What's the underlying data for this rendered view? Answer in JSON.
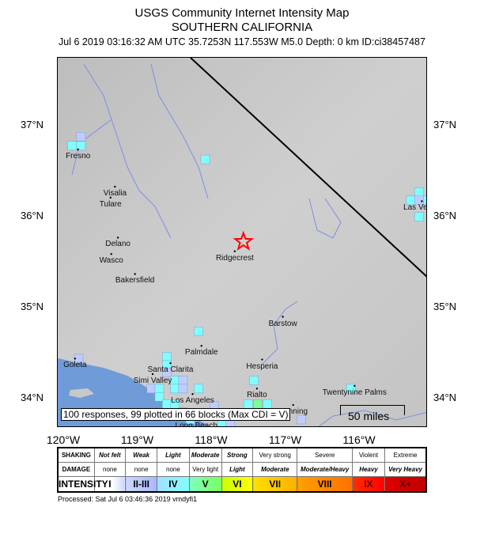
{
  "header": {
    "title": "USGS Community Internet Intensity Map",
    "subtitle": "SOUTHERN CALIFORNIA",
    "info": "Jul 6 2019 03:16:32 AM UTC 35.7253N 117.553W M5.0 Depth: 0 km ID:ci38457487"
  },
  "map": {
    "lon_range": [
      -120.07,
      -115.06
    ],
    "lat_range": [
      33.68,
      37.74
    ],
    "epicenter": {
      "lon": -117.553,
      "lat": 35.7253,
      "icon": "star-icon",
      "color": "#ff0000"
    },
    "lat_labels": [
      "37°N",
      "36°N",
      "35°N",
      "34°N"
    ],
    "lat_values": [
      37,
      36,
      35,
      34
    ],
    "lon_labels": [
      "120°W",
      "119°W",
      "118°W",
      "117°W",
      "116°W"
    ],
    "lon_values": [
      -120,
      -119,
      -118,
      -117,
      -116
    ],
    "cities": [
      {
        "name": "Fresno",
        "lon": -119.79,
        "lat": 36.74
      },
      {
        "name": "Visalia",
        "lon": -119.29,
        "lat": 36.33
      },
      {
        "name": "Tulare",
        "lon": -119.35,
        "lat": 36.21
      },
      {
        "name": "Delano",
        "lon": -119.25,
        "lat": 35.77
      },
      {
        "name": "Wasco",
        "lon": -119.34,
        "lat": 35.59
      },
      {
        "name": "Bakersfield",
        "lon": -119.02,
        "lat": 35.37
      },
      {
        "name": "Ridgecrest",
        "lon": -117.67,
        "lat": 35.62
      },
      {
        "name": "Barstow",
        "lon": -117.02,
        "lat": 34.9
      },
      {
        "name": "Palmdale",
        "lon": -118.12,
        "lat": 34.58
      },
      {
        "name": "Santa Clarita",
        "lon": -118.54,
        "lat": 34.39
      },
      {
        "name": "Simi Valley",
        "lon": -118.78,
        "lat": 34.27
      },
      {
        "name": "Los Angeles",
        "lon": -118.24,
        "lat": 34.05
      },
      {
        "name": "Hesperia",
        "lon": -117.3,
        "lat": 34.43
      },
      {
        "name": "Rialto",
        "lon": -117.37,
        "lat": 34.11
      },
      {
        "name": "Twentynine Palms",
        "lon": -116.05,
        "lat": 34.14
      },
      {
        "name": "Goleta",
        "lon": -119.83,
        "lat": 34.44
      },
      {
        "name": "Long Beach",
        "lon": -118.19,
        "lat": 33.77
      },
      {
        "name": "Banning",
        "lon": -116.88,
        "lat": 33.93
      },
      {
        "name": "Las Vegas",
        "lon": -115.14,
        "lat": 36.17
      }
    ],
    "cdi_blocks": [
      {
        "lon": -119.87,
        "lat": 36.78,
        "cdi": "IV"
      },
      {
        "lon": -119.75,
        "lat": 36.78,
        "cdi": "IV"
      },
      {
        "lon": -119.75,
        "lat": 36.88,
        "cdi": "II-III"
      },
      {
        "lon": -118.07,
        "lat": 36.63,
        "cdi": "IV"
      },
      {
        "lon": -115.29,
        "lat": 36.18,
        "cdi": "IV"
      },
      {
        "lon": -115.18,
        "lat": 36.27,
        "cdi": "IV"
      },
      {
        "lon": -115.18,
        "lat": 36.18,
        "cdi": "II-III"
      },
      {
        "lon": -115.06,
        "lat": 36.18,
        "cdi": "IV"
      },
      {
        "lon": -115.18,
        "lat": 36.0,
        "cdi": "IV"
      },
      {
        "lon": -118.16,
        "lat": 34.74,
        "cdi": "IV"
      },
      {
        "lon": -118.59,
        "lat": 34.46,
        "cdi": "IV"
      },
      {
        "lon": -118.59,
        "lat": 34.37,
        "cdi": "IV"
      },
      {
        "lon": -118.59,
        "lat": 34.29,
        "cdi": "II-III"
      },
      {
        "lon": -118.48,
        "lat": 34.2,
        "cdi": "IV"
      },
      {
        "lon": -118.37,
        "lat": 34.2,
        "cdi": "II-III"
      },
      {
        "lon": -119.78,
        "lat": 34.44,
        "cdi": "II-III"
      },
      {
        "lon": -117.41,
        "lat": 34.2,
        "cdi": "IV"
      },
      {
        "lon": -116.1,
        "lat": 34.11,
        "cdi": "IV"
      },
      {
        "lon": -118.8,
        "lat": 34.11,
        "cdi": "II-III"
      },
      {
        "lon": -118.69,
        "lat": 34.11,
        "cdi": "IV"
      },
      {
        "lon": -118.48,
        "lat": 34.11,
        "cdi": "IV"
      },
      {
        "lon": -118.37,
        "lat": 34.11,
        "cdi": "II-III"
      },
      {
        "lon": -118.16,
        "lat": 34.11,
        "cdi": "IV"
      },
      {
        "lon": -118.69,
        "lat": 34.02,
        "cdi": "IV"
      },
      {
        "lon": -118.59,
        "lat": 33.94,
        "cdi": "IV"
      },
      {
        "lon": -118.48,
        "lat": 33.94,
        "cdi": "IV"
      },
      {
        "lon": -118.37,
        "lat": 33.85,
        "cdi": "II-III"
      },
      {
        "lon": -118.27,
        "lat": 33.77,
        "cdi": "IV"
      },
      {
        "lon": -117.95,
        "lat": 33.92,
        "cdi": "II-III"
      },
      {
        "lon": -117.84,
        "lat": 33.72,
        "cdi": "IV"
      },
      {
        "lon": -117.73,
        "lat": 33.72,
        "cdi": "II-III"
      },
      {
        "lon": -117.49,
        "lat": 33.94,
        "cdi": "IV"
      },
      {
        "lon": -117.36,
        "lat": 33.94,
        "cdi": "V"
      },
      {
        "lon": -117.23,
        "lat": 33.94,
        "cdi": "IV"
      },
      {
        "lon": -116.77,
        "lat": 33.77,
        "cdi": "II-III"
      }
    ],
    "responses_text": "100 responses, 99 plotted in 66 blocks (Max CDI = V)",
    "scale_label": "50 miles",
    "colors": {
      "land": "#c8c8c8",
      "ocean": "#6f9bd8",
      "river": "#7b8fe8",
      "fault": "#000000"
    }
  },
  "legend": {
    "rows": [
      {
        "label": "SHAKING",
        "cells": [
          "Not felt",
          "Weak",
          "Light",
          "Moderate",
          "Strong",
          "Very strong",
          "Severe",
          "Violent",
          "Extreme"
        ]
      },
      {
        "label": "DAMAGE",
        "cells": [
          "none",
          "none",
          "none",
          "Very light",
          "Light",
          "Moderate",
          "Moderate/Heavy",
          "Heavy",
          "Very Heavy"
        ]
      },
      {
        "label": "INTENSITY",
        "cells": [
          "I",
          "II-III",
          "IV",
          "V",
          "VI",
          "VII",
          "VIII",
          "IX",
          "X+"
        ]
      }
    ],
    "intensity_colors": {
      "I": "#ffffff",
      "II-III": "#bfccff",
      "IV": "#80ffff",
      "V": "#7aff93",
      "VI": "#ffff00",
      "VII": "#ffc800",
      "VIII": "#ff9100",
      "IX": "#ff0000",
      "X+": "#c80000"
    }
  },
  "footer": {
    "processed": "Processed: Sat Jul  6 03:46:36 2019 vmdyfi1"
  }
}
